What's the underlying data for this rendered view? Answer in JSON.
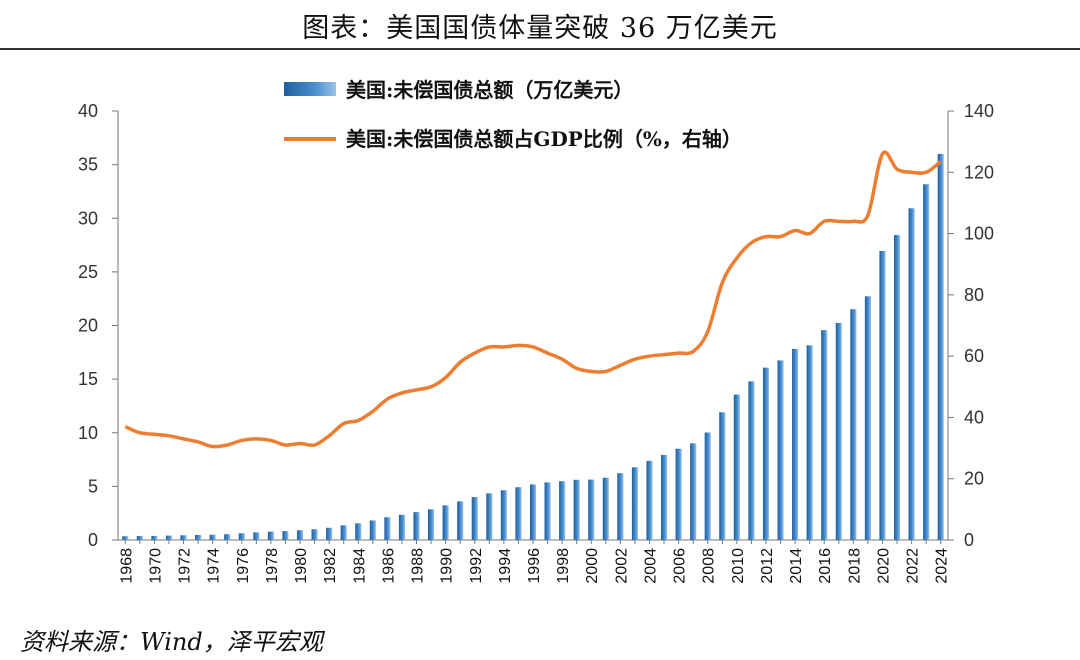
{
  "header": {
    "title": "图表：美国国债体量突破 36 万亿美元"
  },
  "footer": {
    "source": "资料来源：Wind，泽平宏观"
  },
  "chart_data": {
    "type": "bar",
    "x": [
      1968,
      1969,
      1970,
      1971,
      1972,
      1973,
      1974,
      1975,
      1976,
      1977,
      1978,
      1979,
      1980,
      1981,
      1982,
      1983,
      1984,
      1985,
      1986,
      1987,
      1988,
      1989,
      1990,
      1991,
      1992,
      1993,
      1994,
      1995,
      1996,
      1997,
      1998,
      1999,
      2000,
      2001,
      2002,
      2003,
      2004,
      2005,
      2006,
      2007,
      2008,
      2009,
      2010,
      2011,
      2012,
      2013,
      2014,
      2015,
      2016,
      2017,
      2018,
      2019,
      2020,
      2021,
      2022,
      2023,
      2024
    ],
    "x_tick_labels": [
      "1968",
      "1970",
      "1972",
      "1974",
      "1976",
      "1978",
      "1980",
      "1982",
      "1984",
      "1986",
      "1988",
      "1990",
      "1992",
      "1994",
      "1996",
      "1998",
      "2000",
      "2002",
      "2004",
      "2006",
      "2008",
      "2010",
      "2012",
      "2014",
      "2016",
      "2018",
      "2020",
      "2022",
      "2024"
    ],
    "series": [
      {
        "name": "美国:未偿国债总额（万亿美元）",
        "type": "bar",
        "axis": "left",
        "color": "#2E75B6",
        "values": [
          0.35,
          0.37,
          0.38,
          0.41,
          0.44,
          0.47,
          0.49,
          0.54,
          0.63,
          0.71,
          0.78,
          0.83,
          0.91,
          1.0,
          1.14,
          1.37,
          1.56,
          1.82,
          2.12,
          2.35,
          2.6,
          2.86,
          3.23,
          3.6,
          4.0,
          4.35,
          4.64,
          4.92,
          5.18,
          5.37,
          5.48,
          5.61,
          5.63,
          5.81,
          6.23,
          6.78,
          7.38,
          7.93,
          8.51,
          9.01,
          10.02,
          11.91,
          13.56,
          14.79,
          16.07,
          16.74,
          17.82,
          18.15,
          19.57,
          20.24,
          21.52,
          22.72,
          26.95,
          28.43,
          30.93,
          33.17,
          36.0
        ]
      },
      {
        "name": "美国:未偿国债总额占GDP比例（%，右轴）",
        "type": "line",
        "axis": "right",
        "color": "#ED7D31",
        "values": [
          37,
          35,
          34.5,
          34,
          33,
          32,
          30.5,
          31,
          32.5,
          33,
          32.5,
          31,
          31.5,
          31,
          34,
          38,
          39,
          42,
          46,
          48,
          49,
          50,
          53,
          58,
          61,
          63,
          63,
          63.5,
          63,
          61,
          59,
          56,
          55,
          55,
          57,
          59,
          60,
          60.5,
          61,
          61.5,
          68,
          84,
          92,
          97,
          99,
          99,
          101,
          100,
          104,
          104,
          104,
          106,
          126,
          121,
          120,
          120,
          123.5
        ]
      }
    ],
    "ylim_left": [
      0,
      40
    ],
    "yticks_left": [
      0,
      5,
      10,
      15,
      20,
      25,
      30,
      35,
      40
    ],
    "ylim_right": [
      0,
      140
    ],
    "yticks_right": [
      0,
      20,
      40,
      60,
      80,
      100,
      120,
      140
    ],
    "legend_placement": "top",
    "grid": false
  }
}
